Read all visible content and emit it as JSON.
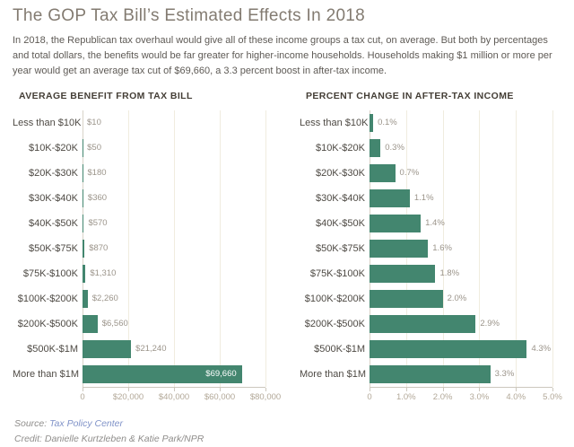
{
  "page": {
    "title": "The GOP Tax Bill’s Estimated Effects In 2018",
    "subtitle": "In 2018, the Republican tax overhaul would give all of these income groups a tax cut, on average. But both by percentages and total dollars, the benefits would be far greater for higher-income households. Households making $1 million or more per year would get an average tax cut of $69,660, a 3.3 percent boost in after-tax income."
  },
  "colors": {
    "bar": "#43866f",
    "link": "#8093c8",
    "grid": "#f0ecdf",
    "axis": "#ccc7bd"
  },
  "chart_data": [
    {
      "type": "bar",
      "orientation": "horizontal",
      "title": "AVERAGE BENEFIT FROM TAX BILL",
      "categories": [
        "Less than $10K",
        "$10K-$20K",
        "$20K-$30K",
        "$30K-$40K",
        "$40K-$50K",
        "$50K-$75K",
        "$75K-$100K",
        "$100K-$200K",
        "$200K-$500K",
        "$500K-$1M",
        "More than $1M"
      ],
      "values": [
        10,
        50,
        180,
        360,
        570,
        870,
        1310,
        2260,
        6560,
        21240,
        69660
      ],
      "value_labels": [
        "$10",
        "$50",
        "$180",
        "$360",
        "$570",
        "$870",
        "$1,310",
        "$2,260",
        "$6,560",
        "$21,240",
        "$69,660"
      ],
      "label_inside": [
        false,
        false,
        false,
        false,
        false,
        false,
        false,
        false,
        false,
        false,
        true
      ],
      "xlim": [
        0,
        80000
      ],
      "xticks": [
        0,
        20000,
        40000,
        60000,
        80000
      ],
      "xtick_labels": [
        "0",
        "$20,000",
        "$40,000",
        "$60,000",
        "$80,000"
      ],
      "grid": true,
      "legend": null
    },
    {
      "type": "bar",
      "orientation": "horizontal",
      "title": "PERCENT CHANGE IN AFTER-TAX INCOME",
      "categories": [
        "Less than $10K",
        "$10K-$20K",
        "$20K-$30K",
        "$30K-$40K",
        "$40K-$50K",
        "$50K-$75K",
        "$75K-$100K",
        "$100K-$200K",
        "$200K-$500K",
        "$500K-$1M",
        "More than $1M"
      ],
      "values": [
        0.1,
        0.3,
        0.7,
        1.1,
        1.4,
        1.6,
        1.8,
        2.0,
        2.9,
        4.3,
        3.3
      ],
      "value_labels": [
        "0.1%",
        "0.3%",
        "0.7%",
        "1.1%",
        "1.4%",
        "1.6%",
        "1.8%",
        "2.0%",
        "2.9%",
        "4.3%",
        "3.3%"
      ],
      "label_inside": [
        false,
        false,
        false,
        false,
        false,
        false,
        false,
        false,
        false,
        false,
        false
      ],
      "xlim": [
        0,
        5
      ],
      "xticks": [
        0,
        1,
        2,
        3,
        4,
        5
      ],
      "xtick_labels": [
        "0",
        "1.0%",
        "2.0%",
        "3.0%",
        "4.0%",
        "5.0%"
      ],
      "grid": true,
      "legend": null
    }
  ],
  "footer": {
    "source_label": "Source:",
    "source_link": "Tax Policy Center",
    "credit_label": "Credit:",
    "credit_text": "Danielle Kurtzleben & Katie Park/NPR"
  }
}
